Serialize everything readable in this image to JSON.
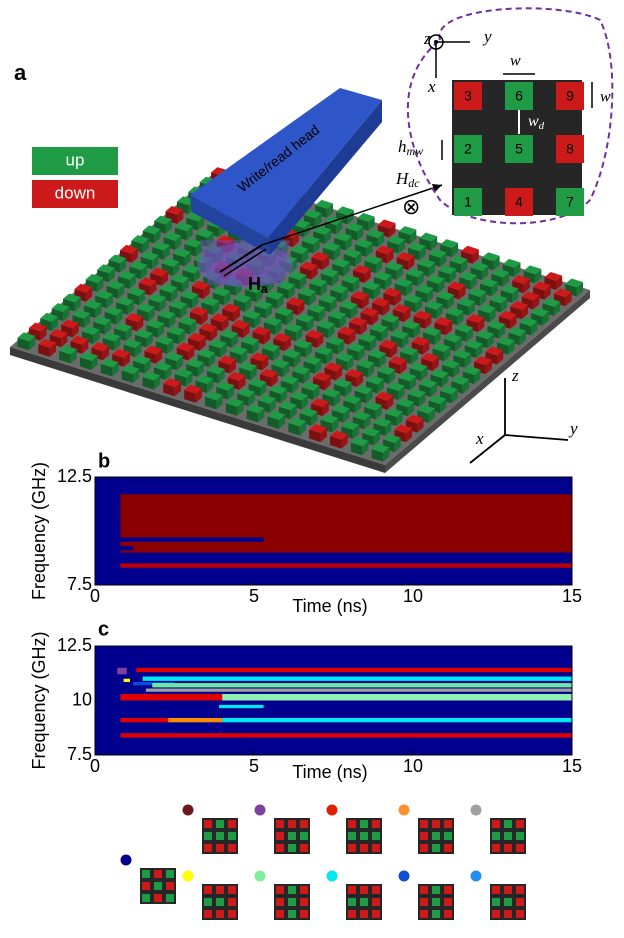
{
  "panel_a": {
    "label": "a",
    "legend": [
      {
        "label": "up",
        "color": "#1f9a45"
      },
      {
        "label": "down",
        "color": "#cc1a1a"
      }
    ],
    "head_label": "Write/read head",
    "field_label": {
      "base": "H",
      "sub": "a"
    },
    "inset": {
      "cells": [
        {
          "label": "3",
          "state": "down"
        },
        {
          "label": "6",
          "state": "up"
        },
        {
          "label": "9",
          "state": "down"
        },
        {
          "label": "2",
          "state": "up"
        },
        {
          "label": "5",
          "state": "up"
        },
        {
          "label": "8",
          "state": "down"
        },
        {
          "label": "1",
          "state": "up"
        },
        {
          "label": "4",
          "state": "down"
        },
        {
          "label": "7",
          "state": "up"
        }
      ],
      "z": "z",
      "y": "y",
      "x": "x",
      "w_top": "w",
      "w_side": "w",
      "w_d": {
        "base": "w",
        "sub": "d"
      },
      "h_mw": {
        "base": "h",
        "sub": "mw"
      },
      "h_dc": {
        "base": "H",
        "sub": "dc"
      },
      "into_symbol": "⊗"
    },
    "axes": {
      "z": "z",
      "x": "x",
      "y": "y"
    }
  },
  "chart_data": [
    {
      "type": "spectrogram",
      "panel": "b",
      "xlabel": "Time (ns)",
      "ylabel": "Frequency (GHz)",
      "xlim": [
        0,
        15
      ],
      "xticks": [
        0,
        5,
        10,
        15
      ],
      "ylim": [
        7.5,
        12.5
      ],
      "yticks": [
        7.5,
        12.5
      ],
      "background": "#00008f",
      "bands": [
        {
          "x": [
            0.8,
            15
          ],
          "y": [
            9.0,
            11.7
          ],
          "color": "#8b0000"
        },
        {
          "x": [
            0.8,
            5.3
          ],
          "y": [
            9.5,
            9.7
          ],
          "color": "#00008f"
        },
        {
          "x": [
            0.8,
            1.2
          ],
          "y": [
            9.1,
            9.3
          ],
          "color": "#00008f"
        },
        {
          "x": [
            0.8,
            15
          ],
          "y": [
            8.3,
            8.5
          ],
          "color": "#c00000"
        }
      ]
    },
    {
      "type": "spectrogram",
      "panel": "c",
      "xlabel": "Time (ns)",
      "ylabel": "Frequency (GHz)",
      "xlim": [
        0,
        15
      ],
      "xticks": [
        0,
        5,
        10,
        15
      ],
      "ylim": [
        7.5,
        12.5
      ],
      "yticks": [
        7.5,
        10,
        12.5
      ],
      "background": "#00008f",
      "bands": [
        {
          "x": [
            1.3,
            15
          ],
          "y": [
            11.3,
            11.5
          ],
          "color": "#e00000"
        },
        {
          "x": [
            1.5,
            15
          ],
          "y": [
            10.9,
            11.1
          ],
          "color": "#00e8f0"
        },
        {
          "x": [
            1.2,
            2.5
          ],
          "y": [
            10.7,
            10.85
          ],
          "color": "#0050e0"
        },
        {
          "x": [
            1.8,
            15
          ],
          "y": [
            10.6,
            10.8
          ],
          "color": "#70e8a0"
        },
        {
          "x": [
            1.6,
            15
          ],
          "y": [
            10.4,
            10.55
          ],
          "color": "#a0a0a0"
        },
        {
          "x": [
            0.8,
            4.0
          ],
          "y": [
            10.0,
            10.3
          ],
          "color": "#e00000"
        },
        {
          "x": [
            4.0,
            15
          ],
          "y": [
            10.0,
            10.3
          ],
          "color": "#90f0b0"
        },
        {
          "x": [
            3.9,
            5.3
          ],
          "y": [
            9.65,
            9.8
          ],
          "color": "#00e8f0"
        },
        {
          "x": [
            0.8,
            2.3
          ],
          "y": [
            9.0,
            9.2
          ],
          "color": "#e00000"
        },
        {
          "x": [
            2.3,
            4.0
          ],
          "y": [
            9.0,
            9.2
          ],
          "color": "#ff8c00"
        },
        {
          "x": [
            4.0,
            15
          ],
          "y": [
            9.0,
            9.2
          ],
          "color": "#00e8f0"
        },
        {
          "x": [
            0.8,
            15
          ],
          "y": [
            8.3,
            8.5
          ],
          "color": "#e00000"
        },
        {
          "x": [
            0.7,
            1.0
          ],
          "y": [
            11.2,
            11.5
          ],
          "color": "#8040a0"
        },
        {
          "x": [
            0.9,
            1.1
          ],
          "y": [
            10.85,
            11.0
          ],
          "color": "#ffff00"
        }
      ]
    }
  ]
}
